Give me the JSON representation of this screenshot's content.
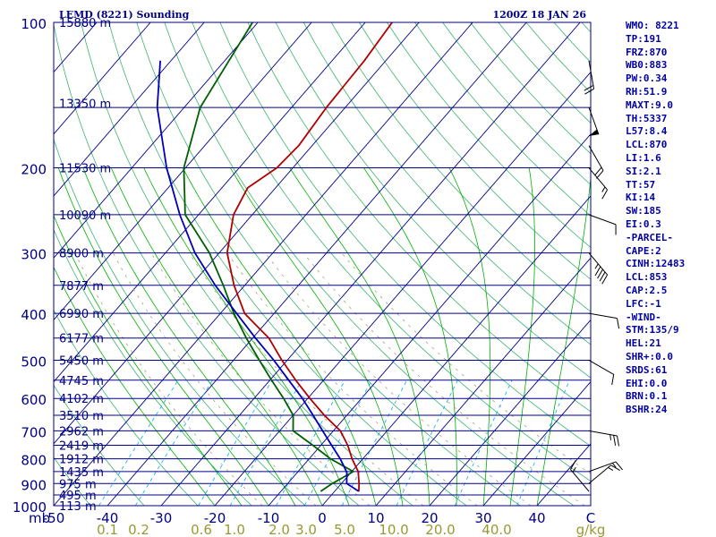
{
  "header": {
    "station": "LEMD (8221) Sounding",
    "time": "1200Z 18 JAN 26"
  },
  "colors": {
    "frame": "#000080",
    "isobar": "#00008b",
    "isotherm": "#00008b",
    "dry_adiabat": "#3cb371",
    "moist_adiabat": "#00b000",
    "mixing_ratio": "#00aaff",
    "virtual_temp": "#999966",
    "temperature": "#b00000",
    "dewpoint": "#006000",
    "parcel": "#0000b4",
    "label": "#000080",
    "wr_label": "#999933"
  },
  "chart_data": {
    "type": "skew-t",
    "title": "LEMD (8221) Sounding",
    "valid_time": "1200Z 18 JAN 26",
    "pressure_axis_label": "mb",
    "pressure_range_hpa": [
      1000,
      100
    ],
    "temperature_range_c": [
      -50,
      50
    ],
    "pressure_ticks": [
      100,
      200,
      300,
      400,
      500,
      600,
      700,
      800,
      900,
      1000
    ],
    "pressure_tick_labels": [
      "100",
      "200",
      "300",
      "400",
      "500",
      "600",
      "700",
      "800",
      "900",
      "1000"
    ],
    "temperature_ticks": [
      -50,
      -40,
      -30,
      -20,
      -10,
      0,
      10,
      20,
      30,
      40,
      50
    ],
    "temperature_tick_labels": [
      "-50",
      "-40",
      "-30",
      "-20",
      "-10",
      "0",
      "10",
      "20",
      "30",
      "40",
      "C"
    ],
    "mixing_ratio_labels": [
      "0.1",
      "0.2",
      "0.6",
      "1.0",
      "2.0",
      "3.0",
      "5.0",
      "10.0",
      "20.0",
      "40.0",
      "g/kg"
    ],
    "height_labels": [
      {
        "p": 100,
        "label": "15880 m"
      },
      {
        "p": 147,
        "label": "13350 m"
      },
      {
        "p": 200,
        "label": "11530 m"
      },
      {
        "p": 250,
        "label": "10090 m"
      },
      {
        "p": 300,
        "label": "8900 m"
      },
      {
        "p": 350,
        "label": "7877 m"
      },
      {
        "p": 400,
        "label": "6990 m"
      },
      {
        "p": 450,
        "label": "6177 m"
      },
      {
        "p": 500,
        "label": "5450 m"
      },
      {
        "p": 550,
        "label": "4745 m"
      },
      {
        "p": 600,
        "label": "4102 m"
      },
      {
        "p": 650,
        "label": "3510 m"
      },
      {
        "p": 700,
        "label": "2962 m"
      },
      {
        "p": 750,
        "label": "2419 m"
      },
      {
        "p": 800,
        "label": "1912 m"
      },
      {
        "p": 850,
        "label": "1435 m"
      },
      {
        "p": 900,
        "label": "975 m"
      },
      {
        "p": 950,
        "label": "495 m"
      },
      {
        "p": 1000,
        "label": "113 m"
      }
    ],
    "series": [
      {
        "name": "Temperature",
        "points": [
          {
            "p": 934,
            "t": 4.5
          },
          {
            "p": 900,
            "t": 3.3
          },
          {
            "p": 850,
            "t": 1.2
          },
          {
            "p": 800,
            "t": -2.0
          },
          {
            "p": 750,
            "t": -5.0
          },
          {
            "p": 700,
            "t": -8.7
          },
          {
            "p": 650,
            "t": -14.2
          },
          {
            "p": 600,
            "t": -19.6
          },
          {
            "p": 550,
            "t": -25.2
          },
          {
            "p": 500,
            "t": -31.0
          },
          {
            "p": 450,
            "t": -37.0
          },
          {
            "p": 420,
            "t": -42.0
          },
          {
            "p": 400,
            "t": -45.5
          },
          {
            "p": 350,
            "t": -52.0
          },
          {
            "p": 300,
            "t": -58.5
          },
          {
            "p": 250,
            "t": -63.5
          },
          {
            "p": 220,
            "t": -65.2
          },
          {
            "p": 200,
            "t": -63.0
          },
          {
            "p": 180,
            "t": -62.5
          },
          {
            "p": 150,
            "t": -63.5
          },
          {
            "p": 120,
            "t": -64.0
          },
          {
            "p": 100,
            "t": -65.0
          }
        ]
      },
      {
        "name": "Dewpoint",
        "points": [
          {
            "p": 934,
            "t": -2.6
          },
          {
            "p": 900,
            "t": -1.7
          },
          {
            "p": 850,
            "t": 0.3
          },
          {
            "p": 800,
            "t": -6.0
          },
          {
            "p": 750,
            "t": -11.5
          },
          {
            "p": 700,
            "t": -17.5
          },
          {
            "p": 650,
            "t": -20.0
          },
          {
            "p": 600,
            "t": -24.5
          },
          {
            "p": 550,
            "t": -29.7
          },
          {
            "p": 500,
            "t": -35.2
          },
          {
            "p": 450,
            "t": -41.2
          },
          {
            "p": 400,
            "t": -47.5
          },
          {
            "p": 350,
            "t": -54.0
          },
          {
            "p": 300,
            "t": -61.8
          },
          {
            "p": 250,
            "t": -72.5
          },
          {
            "p": 200,
            "t": -80.3
          },
          {
            "p": 150,
            "t": -87.0
          },
          {
            "p": 100,
            "t": -91.0
          }
        ]
      },
      {
        "name": "Parcel",
        "points": [
          {
            "p": 934,
            "t": 4.5
          },
          {
            "p": 900,
            "t": 1.0
          },
          {
            "p": 853,
            "t": -0.8
          },
          {
            "p": 800,
            "t": -4.2
          },
          {
            "p": 750,
            "t": -8.0
          },
          {
            "p": 700,
            "t": -12.0
          },
          {
            "p": 650,
            "t": -16.3
          },
          {
            "p": 600,
            "t": -21.0
          },
          {
            "p": 550,
            "t": -26.5
          },
          {
            "p": 500,
            "t": -32.5
          },
          {
            "p": 450,
            "t": -39.5
          },
          {
            "p": 400,
            "t": -47.0
          },
          {
            "p": 350,
            "t": -55.5
          },
          {
            "p": 300,
            "t": -64.5
          },
          {
            "p": 250,
            "t": -73.5
          },
          {
            "p": 200,
            "t": -83.5
          },
          {
            "p": 150,
            "t": -95.0
          },
          {
            "p": 120,
            "t": -102.0
          }
        ]
      }
    ],
    "wind_barbs": [
      {
        "p": 934,
        "dir": 140,
        "kt": 15
      },
      {
        "p": 900,
        "dir": 230,
        "kt": 15
      },
      {
        "p": 850,
        "dir": 250,
        "kt": 15
      },
      {
        "p": 700,
        "dir": 280,
        "kt": 25
      },
      {
        "p": 500,
        "dir": 300,
        "kt": 10
      },
      {
        "p": 400,
        "dir": 280,
        "kt": 10
      },
      {
        "p": 300,
        "dir": 320,
        "kt": 45
      },
      {
        "p": 250,
        "dir": 290,
        "kt": 10
      },
      {
        "p": 200,
        "dir": 320,
        "kt": 15
      },
      {
        "p": 180,
        "dir": 330,
        "kt": 20
      },
      {
        "p": 150,
        "dir": 340,
        "kt": 50
      },
      {
        "p": 120,
        "dir": 350,
        "kt": 20
      }
    ]
  },
  "indices": [
    "WMO: 8221",
    "TP:191",
    "FRZ:870",
    "WB0:883",
    "PW:0.34",
    "RH:51.9",
    "MAXT:9.0",
    "TH:5337",
    "L57:8.4",
    "LCL:870",
    "LI:1.6",
    "SI:2.1",
    "TT:57",
    "KI:14",
    "SW:185",
    "EI:0.3",
    "-PARCEL-",
    "CAPE:2",
    "CINH:12483",
    "LCL:853",
    "CAP:2.5",
    "LFC:-1",
    "-WIND-",
    "STM:135/9",
    "HEL:21",
    "SHR+:0.0",
    "SRDS:61",
    "EHI:0.0",
    "BRN:0.1",
    "BSHR:24"
  ]
}
